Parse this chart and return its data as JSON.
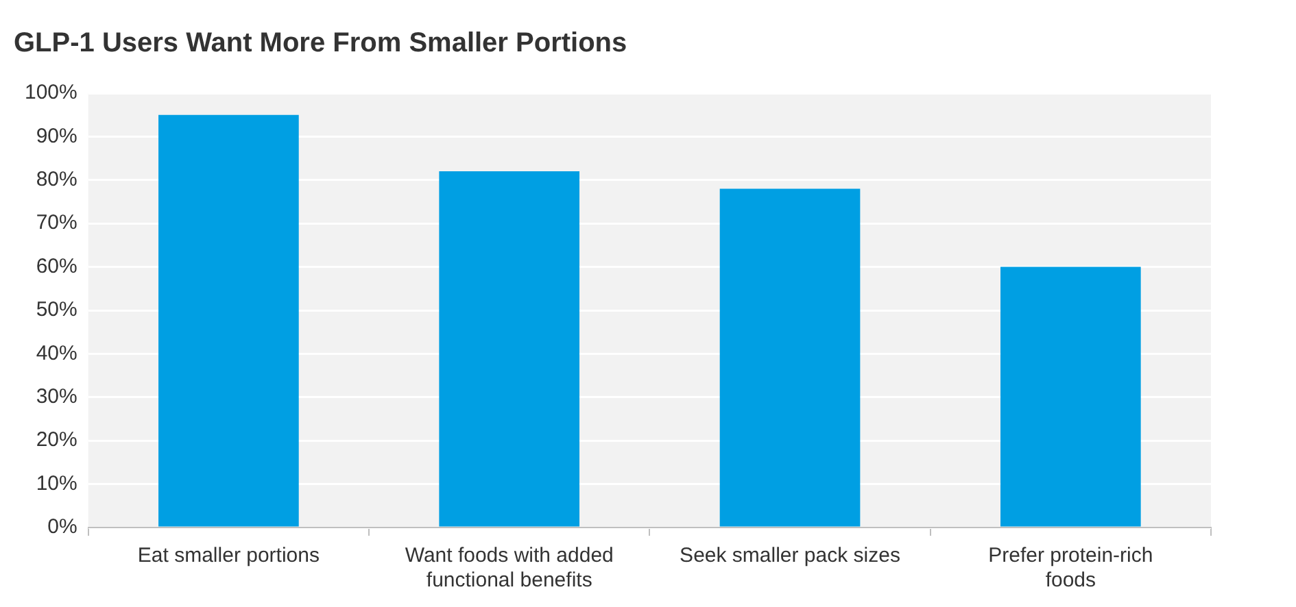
{
  "chart_data": {
    "type": "bar",
    "title": "GLP-1 Users Want More From Smaller Portions",
    "categories": [
      "Eat smaller portions",
      "Want foods with added functional benefits",
      "Seek smaller pack sizes",
      "Prefer protein-rich foods"
    ],
    "values": [
      95,
      82,
      78,
      60
    ],
    "color": "#009fe3",
    "ylim": [
      0,
      100
    ],
    "yticks": [
      {
        "value": 0,
        "label": "0%"
      },
      {
        "value": 10,
        "label": "10%"
      },
      {
        "value": 20,
        "label": "20%"
      },
      {
        "value": 30,
        "label": "30%"
      },
      {
        "value": 40,
        "label": "40%"
      },
      {
        "value": 50,
        "label": "50%"
      },
      {
        "value": 60,
        "label": "60%"
      },
      {
        "value": 70,
        "label": "70%"
      },
      {
        "value": 80,
        "label": "80%"
      },
      {
        "value": 90,
        "label": "90%"
      },
      {
        "value": 100,
        "label": "100%"
      }
    ],
    "grid": "y",
    "legend": false
  }
}
